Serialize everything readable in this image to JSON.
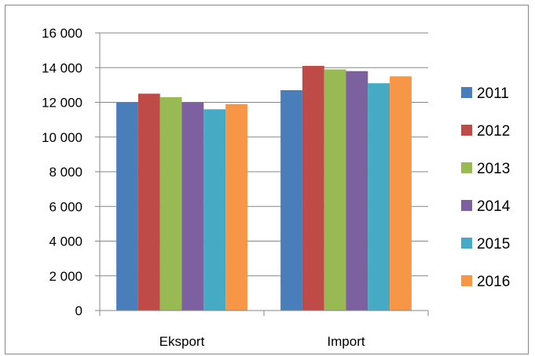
{
  "chart_data": {
    "type": "bar",
    "categories": [
      "Eksport",
      "Import"
    ],
    "series": [
      {
        "name": "2011",
        "color": "#4A7EBB",
        "values": [
          12000,
          12700
        ]
      },
      {
        "name": "2012",
        "color": "#BE4B48",
        "values": [
          12500,
          14100
        ]
      },
      {
        "name": "2013",
        "color": "#98B954",
        "values": [
          12300,
          13900
        ]
      },
      {
        "name": "2014",
        "color": "#7D60A0",
        "values": [
          12000,
          13800
        ]
      },
      {
        "name": "2015",
        "color": "#46AAC5",
        "values": [
          11600,
          13100
        ]
      },
      {
        "name": "2016",
        "color": "#F79646",
        "values": [
          11900,
          13500
        ]
      }
    ],
    "y_ticks": [
      "0",
      "2 000",
      "4 000",
      "6 000",
      "8 000",
      "10 000",
      "12 000",
      "14 000",
      "16 000"
    ],
    "ylim": [
      0,
      16000
    ],
    "y_step": 2000,
    "grid": true,
    "legend_position": "right"
  }
}
